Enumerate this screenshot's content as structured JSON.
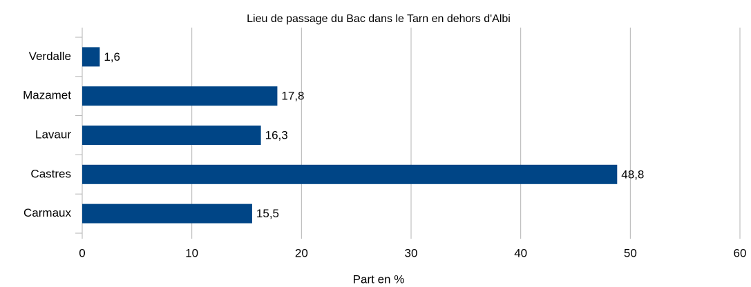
{
  "chart_data": {
    "type": "barh",
    "title": "Lieu de passage du Bac dans le Tarn en dehors d'Albi",
    "xlabel": "Part en %",
    "categories": [
      "Carmaux",
      "Castres",
      "Lavaur",
      "Mazamet",
      "Verdalle"
    ],
    "values": [
      15.5,
      48.8,
      16.3,
      17.8,
      1.6
    ],
    "value_labels": [
      "15,5",
      "48,8",
      "16,3",
      "17,8",
      "1,6"
    ],
    "color": "#004586",
    "xlim": [
      0,
      60
    ],
    "xticks": [
      0,
      10,
      20,
      30,
      40,
      50,
      60
    ],
    "grid": true
  }
}
